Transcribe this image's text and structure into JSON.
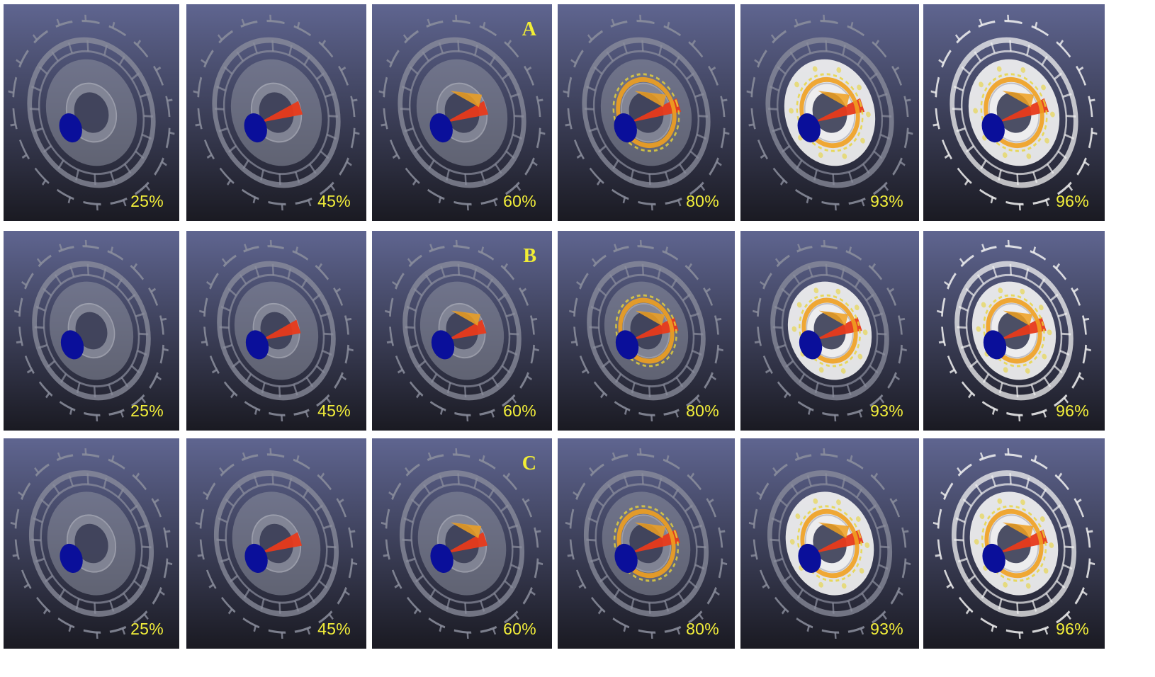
{
  "rows": [
    {
      "label": "A",
      "label_col": 2,
      "percents": [
        "25%",
        "45%",
        "60%",
        "80%",
        "93%",
        "96%"
      ],
      "fill_fraction": [
        0.25,
        0.45,
        0.6,
        0.8,
        0.93,
        0.96
      ]
    },
    {
      "label": "B",
      "label_col": 2,
      "percents": [
        "25%",
        "45%",
        "60%",
        "80%",
        "93%",
        "96%"
      ],
      "fill_fraction": [
        0.25,
        0.45,
        0.6,
        0.8,
        0.93,
        0.96
      ]
    },
    {
      "label": "C",
      "label_col": 2,
      "percents": [
        "25%",
        "45%",
        "60%",
        "80%",
        "93%",
        "96%"
      ],
      "fill_fraction": [
        0.25,
        0.45,
        0.6,
        0.8,
        0.93,
        0.96
      ]
    }
  ],
  "colors": {
    "background_top": "#5f6590",
    "background_bottom": "#1a1a22",
    "mold": "#8c8f9e",
    "gate": "#0a0f9a",
    "melt_hot": "#e83a1a",
    "melt_warm": "#f0a020",
    "melt_edge": "#e8d43a",
    "filled_shell": "#f2f2f2",
    "label_yellow": "#f2ee35"
  }
}
